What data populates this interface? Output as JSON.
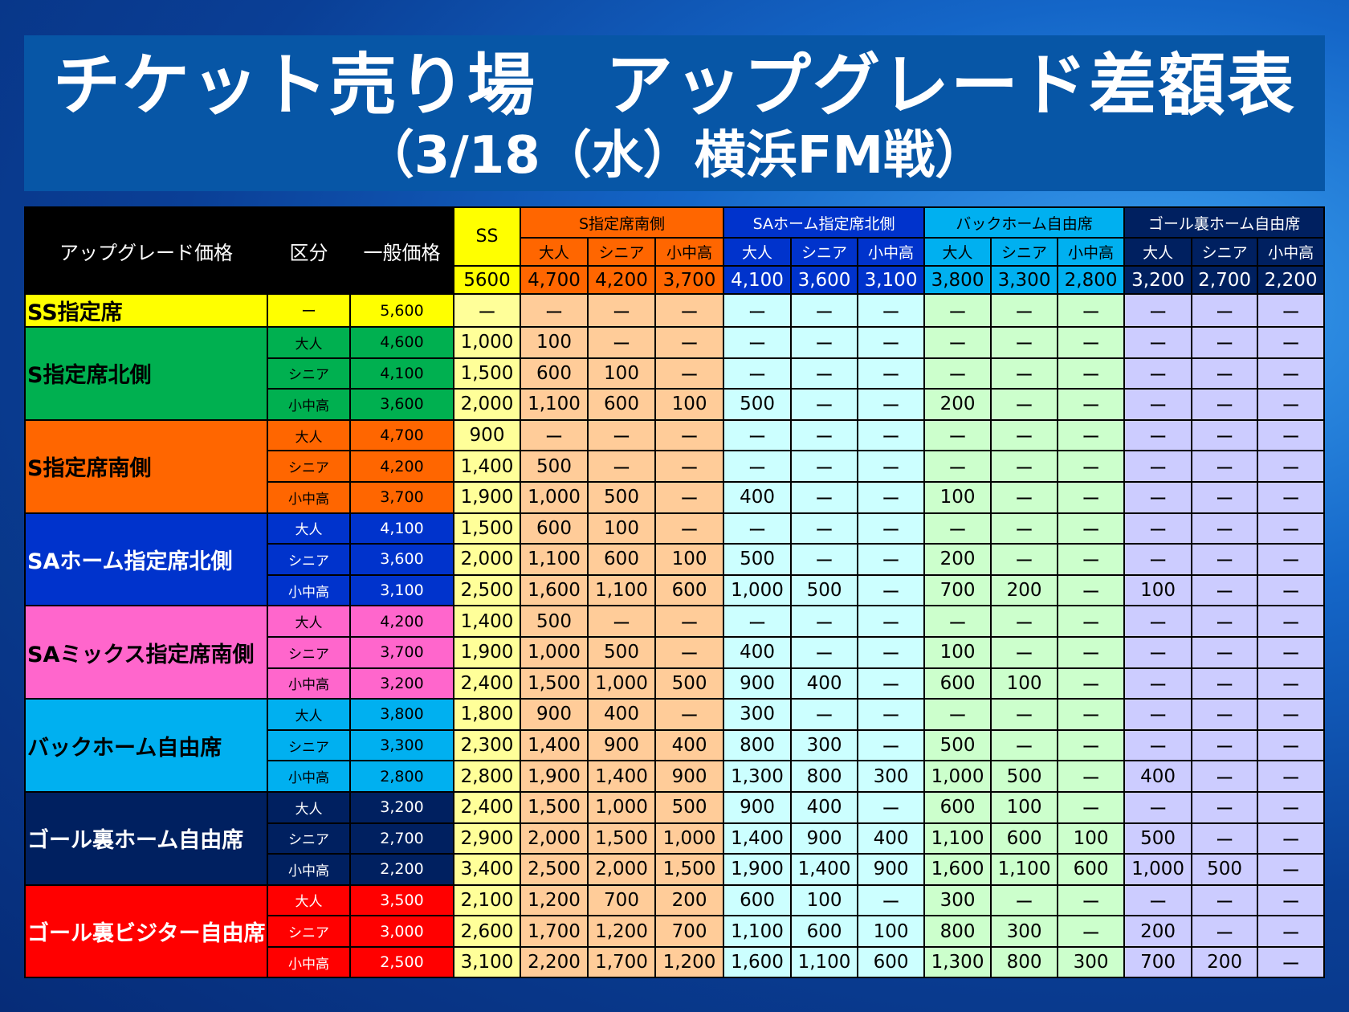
{
  "title": {
    "line1": "チケット売り場　アップグレード差額表",
    "line2": "（3/18（水）横浜FM戦）"
  },
  "header": {
    "upgrade_label": "アップグレード価格",
    "kubun_label": "区分",
    "price_label": "一般価格",
    "ss": {
      "label": "SS",
      "price": "5600",
      "color": "#ffff00",
      "cell": "#ffff99",
      "text": "#000"
    },
    "groups": [
      {
        "label": "S指定席南側",
        "color": "#ff6600",
        "cell": "#ffcc99",
        "text": "#000",
        "subs": [
          "大人",
          "シニア",
          "小中高"
        ],
        "prices": [
          "4,700",
          "4,200",
          "3,700"
        ]
      },
      {
        "label": "SAホーム指定席北側",
        "color": "#0033cc",
        "cell": "#ccffff",
        "text": "#fff",
        "subs": [
          "大人",
          "シニア",
          "小中高"
        ],
        "prices": [
          "4,100",
          "3,600",
          "3,100"
        ]
      },
      {
        "label": "バックホーム自由席",
        "color": "#00b0f0",
        "cell": "#ccffcc",
        "text": "#000",
        "subs": [
          "大人",
          "シニア",
          "小中高"
        ],
        "prices": [
          "3,800",
          "3,300",
          "2,800"
        ]
      },
      {
        "label": "ゴール裏ホーム自由席",
        "color": "#002060",
        "cell": "#ccccff",
        "text": "#fff",
        "subs": [
          "大人",
          "シニア",
          "小中高"
        ],
        "prices": [
          "3,200",
          "2,700",
          "2,200"
        ]
      }
    ]
  },
  "rows": [
    {
      "name": "SS指定席",
      "color": "#ffff00",
      "text": "#000",
      "items": [
        {
          "kubun": "ー",
          "price": "5,600",
          "values": [
            "ー",
            "ー",
            "ー",
            "ー",
            "ー",
            "ー",
            "ー",
            "ー",
            "ー",
            "ー",
            "ー",
            "ー",
            "ー"
          ]
        }
      ]
    },
    {
      "name": "S指定席北側",
      "color": "#00b050",
      "text": "#000",
      "items": [
        {
          "kubun": "大人",
          "price": "4,600",
          "values": [
            "1,000",
            "100",
            "ー",
            "ー",
            "ー",
            "ー",
            "ー",
            "ー",
            "ー",
            "ー",
            "ー",
            "ー",
            "ー"
          ]
        },
        {
          "kubun": "シニア",
          "price": "4,100",
          "values": [
            "1,500",
            "600",
            "100",
            "ー",
            "ー",
            "ー",
            "ー",
            "ー",
            "ー",
            "ー",
            "ー",
            "ー",
            "ー"
          ]
        },
        {
          "kubun": "小中高",
          "price": "3,600",
          "values": [
            "2,000",
            "1,100",
            "600",
            "100",
            "500",
            "ー",
            "ー",
            "200",
            "ー",
            "ー",
            "ー",
            "ー",
            "ー"
          ]
        }
      ]
    },
    {
      "name": "S指定席南側",
      "color": "#ff6600",
      "text": "#000",
      "items": [
        {
          "kubun": "大人",
          "price": "4,700",
          "values": [
            "900",
            "ー",
            "ー",
            "ー",
            "ー",
            "ー",
            "ー",
            "ー",
            "ー",
            "ー",
            "ー",
            "ー",
            "ー"
          ]
        },
        {
          "kubun": "シニア",
          "price": "4,200",
          "values": [
            "1,400",
            "500",
            "ー",
            "ー",
            "ー",
            "ー",
            "ー",
            "ー",
            "ー",
            "ー",
            "ー",
            "ー",
            "ー"
          ]
        },
        {
          "kubun": "小中高",
          "price": "3,700",
          "values": [
            "1,900",
            "1,000",
            "500",
            "ー",
            "400",
            "ー",
            "ー",
            "100",
            "ー",
            "ー",
            "ー",
            "ー",
            "ー"
          ]
        }
      ]
    },
    {
      "name": "SAホーム指定席北側",
      "color": "#0033cc",
      "text": "#fff",
      "items": [
        {
          "kubun": "大人",
          "price": "4,100",
          "values": [
            "1,500",
            "600",
            "100",
            "ー",
            "ー",
            "ー",
            "ー",
            "ー",
            "ー",
            "ー",
            "ー",
            "ー",
            "ー"
          ]
        },
        {
          "kubun": "シニア",
          "price": "3,600",
          "values": [
            "2,000",
            "1,100",
            "600",
            "100",
            "500",
            "ー",
            "ー",
            "200",
            "ー",
            "ー",
            "ー",
            "ー",
            "ー"
          ]
        },
        {
          "kubun": "小中高",
          "price": "3,100",
          "values": [
            "2,500",
            "1,600",
            "1,100",
            "600",
            "1,000",
            "500",
            "ー",
            "700",
            "200",
            "ー",
            "100",
            "ー",
            "ー"
          ]
        }
      ]
    },
    {
      "name": "SAミックス指定席南側",
      "color": "#ff66cc",
      "text": "#000",
      "items": [
        {
          "kubun": "大人",
          "price": "4,200",
          "values": [
            "1,400",
            "500",
            "ー",
            "ー",
            "ー",
            "ー",
            "ー",
            "ー",
            "ー",
            "ー",
            "ー",
            "ー",
            "ー"
          ]
        },
        {
          "kubun": "シニア",
          "price": "3,700",
          "values": [
            "1,900",
            "1,000",
            "500",
            "ー",
            "400",
            "ー",
            "ー",
            "100",
            "ー",
            "ー",
            "ー",
            "ー",
            "ー"
          ]
        },
        {
          "kubun": "小中高",
          "price": "3,200",
          "values": [
            "2,400",
            "1,500",
            "1,000",
            "500",
            "900",
            "400",
            "ー",
            "600",
            "100",
            "ー",
            "ー",
            "ー",
            "ー"
          ]
        }
      ]
    },
    {
      "name": "バックホーム自由席",
      "color": "#00b0f0",
      "text": "#000",
      "items": [
        {
          "kubun": "大人",
          "price": "3,800",
          "values": [
            "1,800",
            "900",
            "400",
            "ー",
            "300",
            "ー",
            "ー",
            "ー",
            "ー",
            "ー",
            "ー",
            "ー",
            "ー"
          ]
        },
        {
          "kubun": "シニア",
          "price": "3,300",
          "values": [
            "2,300",
            "1,400",
            "900",
            "400",
            "800",
            "300",
            "ー",
            "500",
            "ー",
            "ー",
            "ー",
            "ー",
            "ー"
          ]
        },
        {
          "kubun": "小中高",
          "price": "2,800",
          "values": [
            "2,800",
            "1,900",
            "1,400",
            "900",
            "1,300",
            "800",
            "300",
            "1,000",
            "500",
            "ー",
            "400",
            "ー",
            "ー"
          ]
        }
      ]
    },
    {
      "name": "ゴール裏ホーム自由席",
      "color": "#002060",
      "text": "#fff",
      "items": [
        {
          "kubun": "大人",
          "price": "3,200",
          "values": [
            "2,400",
            "1,500",
            "1,000",
            "500",
            "900",
            "400",
            "ー",
            "600",
            "100",
            "ー",
            "ー",
            "ー",
            "ー"
          ]
        },
        {
          "kubun": "シニア",
          "price": "2,700",
          "values": [
            "2,900",
            "2,000",
            "1,500",
            "1,000",
            "1,400",
            "900",
            "400",
            "1,100",
            "600",
            "100",
            "500",
            "ー",
            "ー"
          ]
        },
        {
          "kubun": "小中高",
          "price": "2,200",
          "values": [
            "3,400",
            "2,500",
            "2,000",
            "1,500",
            "1,900",
            "1,400",
            "900",
            "1,600",
            "1,100",
            "600",
            "1,000",
            "500",
            "ー"
          ]
        }
      ]
    },
    {
      "name": "ゴール裏ビジター自由席",
      "color": "#ff0000",
      "text": "#fff",
      "items": [
        {
          "kubun": "大人",
          "price": "3,500",
          "values": [
            "2,100",
            "1,200",
            "700",
            "200",
            "600",
            "100",
            "ー",
            "300",
            "ー",
            "ー",
            "ー",
            "ー",
            "ー"
          ]
        },
        {
          "kubun": "シニア",
          "price": "3,000",
          "values": [
            "2,600",
            "1,700",
            "1,200",
            "700",
            "1,100",
            "600",
            "100",
            "800",
            "300",
            "ー",
            "200",
            "ー",
            "ー"
          ]
        },
        {
          "kubun": "小中高",
          "price": "2,500",
          "values": [
            "3,100",
            "2,200",
            "1,700",
            "1,200",
            "1,600",
            "1,100",
            "600",
            "1,300",
            "800",
            "300",
            "700",
            "200",
            "ー"
          ]
        }
      ]
    }
  ]
}
